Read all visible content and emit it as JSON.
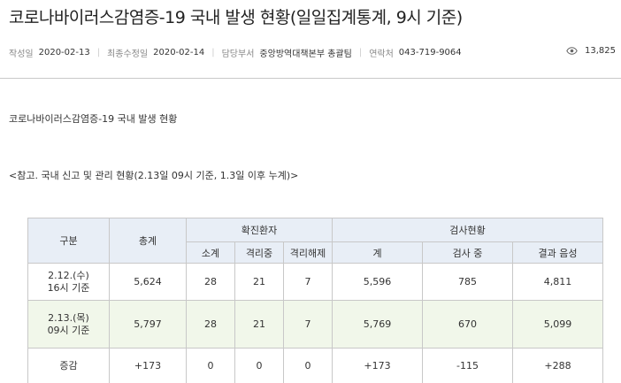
{
  "title": "코로나바이러스감염증-19 국내 발생 현황(일일집계통계, 9시 기준)",
  "meta": {
    "created_label": "작성일",
    "created_value": "2020-02-13",
    "modified_label": "최종수정일",
    "modified_value": "2020-02-14",
    "dept_label": "담당부서",
    "dept_value": "중앙방역대책본부 총괄팀",
    "contact_label": "연락처",
    "contact_value": "043-719-9064",
    "views_icon": "eye-icon",
    "views": "13,825"
  },
  "body": {
    "heading": "코로나바이러스감염증-19 국내 발생 현황",
    "note": "<참고. 국내 신고 및 관리 현황(2.13일 09시 기준, 1.3일 이후 누계)>"
  },
  "table": {
    "headers": {
      "category": "구분",
      "total": "총계",
      "confirmed_group": "확진환자",
      "testing_group": "검사현황",
      "subtotal": "소계",
      "isolating": "격리중",
      "released": "격리해제",
      "test_total": "계",
      "in_testing": "검사 중",
      "negative": "결과 음성"
    },
    "rows": [
      {
        "label1": "2.12.(수)",
        "label2": "16시 기준",
        "total": "5,624",
        "subtotal": "28",
        "isolating": "21",
        "released": "7",
        "test_total": "5,596",
        "in_testing": "785",
        "negative": "4,811"
      },
      {
        "label1": "2.13.(목)",
        "label2": "09시 기준",
        "total": "5,797",
        "subtotal": "28",
        "isolating": "21",
        "released": "7",
        "test_total": "5,769",
        "in_testing": "670",
        "negative": "5,099"
      },
      {
        "label1": "증감",
        "label2": "",
        "total": "+173",
        "subtotal": "0",
        "isolating": "0",
        "released": "0",
        "test_total": "+173",
        "in_testing": "-115",
        "negative": "+288"
      }
    ]
  }
}
